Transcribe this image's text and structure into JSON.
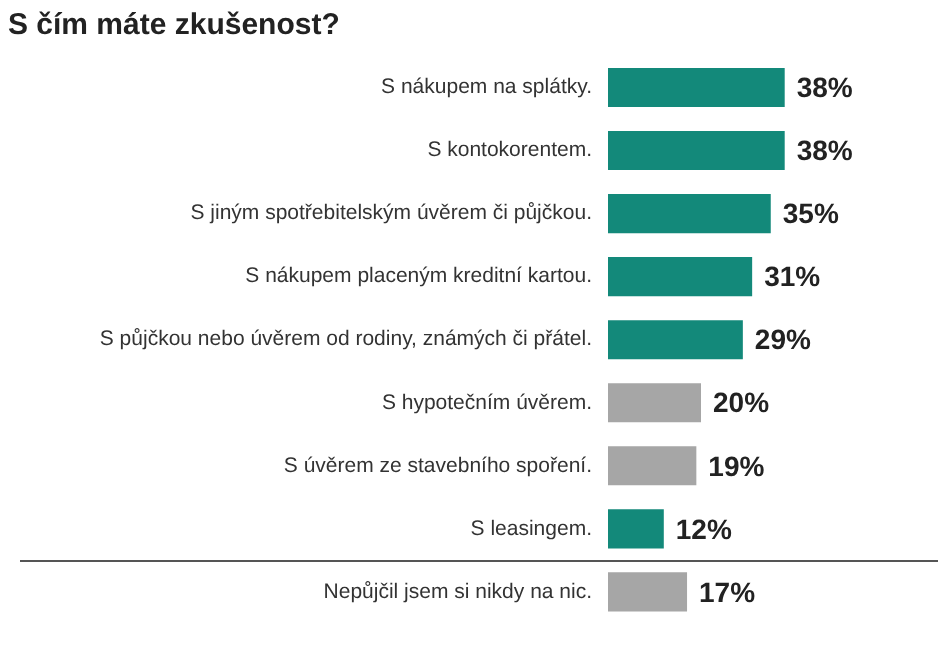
{
  "chart_data": {
    "type": "bar",
    "orientation": "horizontal",
    "title": "S čím máte zkušenost?",
    "categories": [
      "S nákupem na splátky.",
      "S kontokorentem.",
      "S jiným spotřebitelským úvěrem či půjčkou.",
      "S nákupem placeným kreditní kartou.",
      "S půjčkou nebo úvěrem od rodiny, známých či přátel.",
      "S hypotečním úvěrem.",
      "S úvěrem ze stavebního spoření.",
      "S leasingem.",
      "Nepůjčil jsem si nikdy na nic."
    ],
    "values": [
      38,
      38,
      35,
      31,
      29,
      20,
      19,
      12,
      17
    ],
    "colors": [
      "#13897a",
      "#13897a",
      "#13897a",
      "#13897a",
      "#13897a",
      "#a6a6a6",
      "#a6a6a6",
      "#13897a",
      "#a6a6a6"
    ],
    "value_labels": [
      "38%",
      "38%",
      "35%",
      "31%",
      "29%",
      "20%",
      "19%",
      "12%",
      "17%"
    ],
    "legend": false,
    "grid": false
  }
}
